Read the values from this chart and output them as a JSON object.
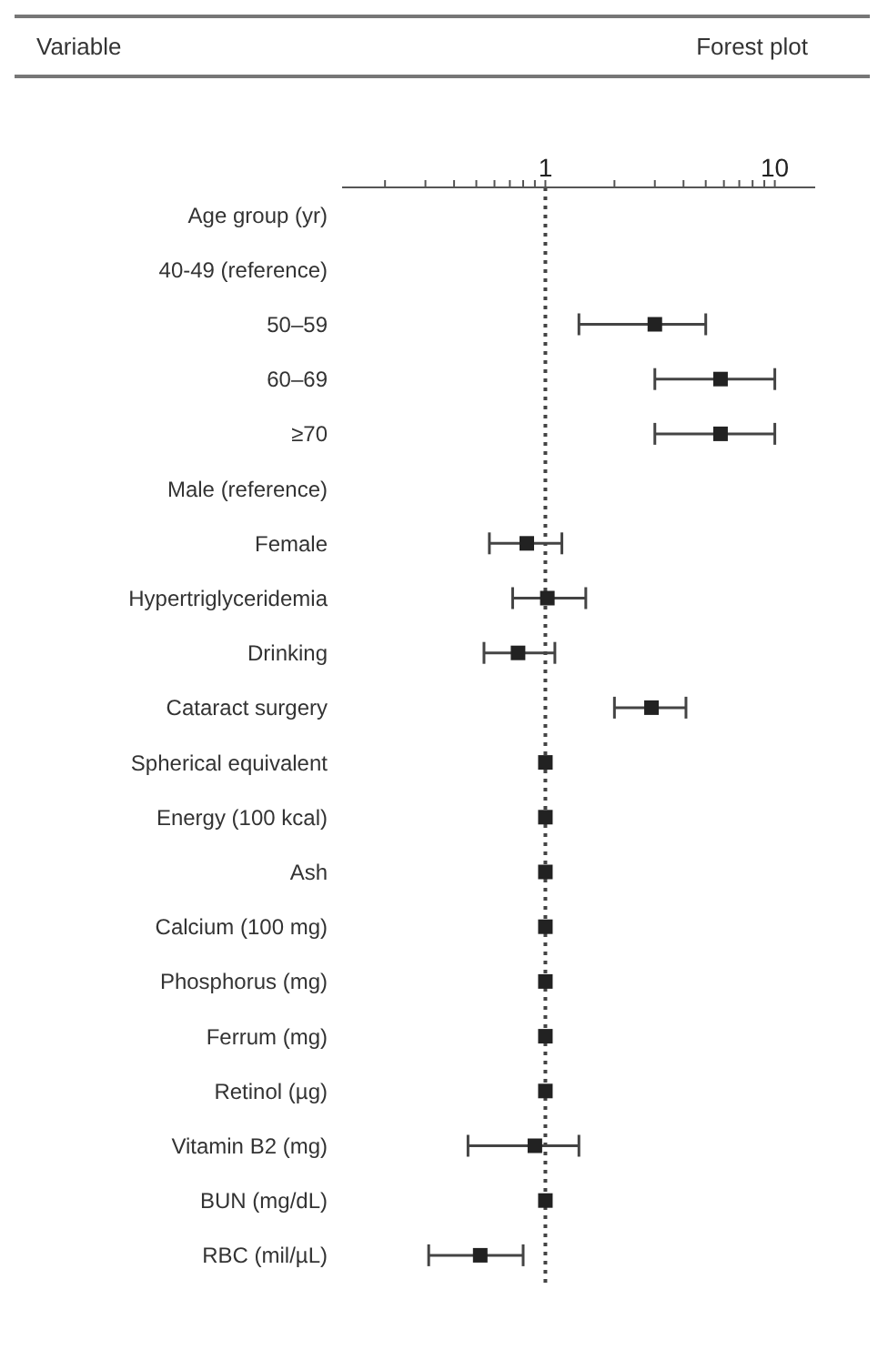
{
  "chart_data": {
    "type": "scatter",
    "title": "Forest plot",
    "annotations": [
      "Variable"
    ],
    "categories": [
      "Age group (yr)",
      "40-49 (reference)",
      "50–59",
      "60–69",
      "≥70",
      "Male (reference)",
      "Female",
      "Hypertriglyceridemia",
      "Drinking",
      "Cataract surgery",
      "Spherical equivalent",
      "Energy (100 kcal)",
      "Ash",
      "Calcium (100 mg)",
      "Phosphorus (mg)",
      "Ferrum (mg)",
      "Retinol (µg)",
      "Vitamin B2 (mg)",
      "BUN (mg/dL)",
      "RBC (mil/µL)"
    ],
    "values": [
      null,
      null,
      3.0,
      5.8,
      5.8,
      null,
      0.83,
      1.02,
      0.76,
      2.9,
      1.0,
      1.0,
      1.0,
      1.0,
      1.0,
      1.0,
      1.0,
      0.9,
      1.0,
      0.52
    ],
    "errors": [
      null,
      null,
      [
        1.4,
        5.0
      ],
      [
        3.0,
        10
      ],
      [
        3.0,
        10
      ],
      null,
      [
        0.57,
        1.18
      ],
      [
        0.72,
        1.5
      ],
      [
        0.54,
        1.1
      ],
      [
        2.0,
        4.1
      ],
      null,
      null,
      null,
      null,
      null,
      null,
      null,
      [
        0.46,
        1.4
      ],
      null,
      [
        0.31,
        0.8
      ]
    ],
    "color": "#222222",
    "marker": "square",
    "log": "x",
    "xlim": [
      0.13,
      15
    ],
    "xticks": [
      {
        "value": 0.2,
        "label": null
      },
      {
        "value": 0.3,
        "label": null
      },
      {
        "value": 0.4,
        "label": null
      },
      {
        "value": 0.5,
        "label": null
      },
      {
        "value": 0.6,
        "label": null
      },
      {
        "value": 0.7,
        "label": null
      },
      {
        "value": 0.8,
        "label": null
      },
      {
        "value": 0.9,
        "label": null
      },
      1,
      {
        "value": 2,
        "label": null
      },
      {
        "value": 3,
        "label": null
      },
      {
        "value": 4,
        "label": null
      },
      {
        "value": 5,
        "label": null
      },
      {
        "value": 6,
        "label": null
      },
      {
        "value": 7,
        "label": null
      },
      {
        "value": 8,
        "label": null
      },
      {
        "value": 9,
        "label": null
      },
      10
    ],
    "ref_lines": [
      {
        "axis": "x",
        "value": 1,
        "line_style": "dotted",
        "color": "#444444"
      }
    ],
    "orientation": "horizontal",
    "grid": false,
    "legend": false
  }
}
